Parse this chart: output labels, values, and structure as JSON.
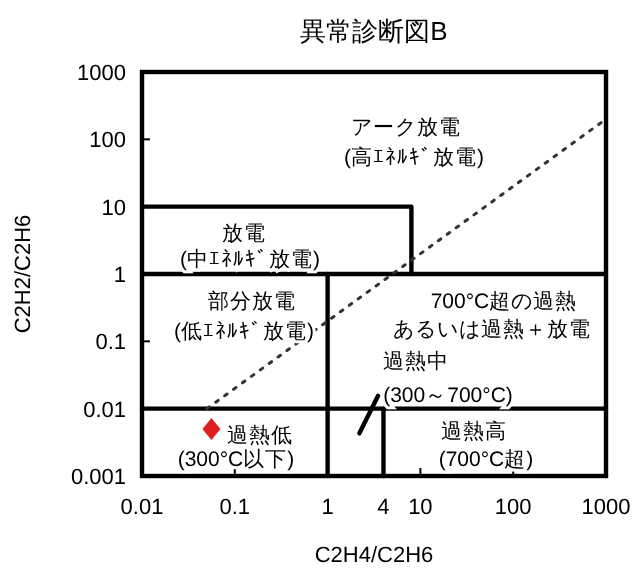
{
  "chart_data": {
    "type": "line",
    "title": "異常診断図B",
    "xlabel": "C2H4/C2H6",
    "ylabel": "C2H2/C2H6",
    "log": "xy",
    "grid": false,
    "xlim": [
      0.01,
      1000
    ],
    "ylim": [
      0.001,
      1000
    ],
    "xticks": [
      0.01,
      0.1,
      1,
      4,
      10,
      100,
      1000
    ],
    "yticks": [
      0.001,
      0.01,
      0.1,
      1,
      10,
      100,
      1000
    ],
    "series": [
      {
        "color": "#000000",
        "x": [
          0.01,
          8,
          8
        ],
        "values": [
          10,
          10,
          1
        ]
      },
      {
        "color": "#000000",
        "x": [
          0.01,
          1000
        ],
        "values": [
          1,
          1
        ]
      },
      {
        "color": "#000000",
        "x": [
          1,
          1
        ],
        "values": [
          1,
          0.001
        ]
      },
      {
        "color": "#000000",
        "x": [
          0.01,
          1000
        ],
        "values": [
          0.01,
          0.01
        ]
      },
      {
        "color": "#000000",
        "x": [
          4,
          4
        ],
        "values": [
          0.01,
          0.001
        ]
      },
      {
        "color": "#333333",
        "line_style": "dotted",
        "x": [
          0.05,
          1000
        ],
        "values": [
          0.01,
          200
        ]
      },
      {
        "type": "scatter",
        "color": "#e02020",
        "marker": "diamond",
        "x": [
          0.056
        ],
        "values": [
          0.005
        ]
      },
      {
        "color": "#000000",
        "x": [
          2.2,
          3.5
        ],
        "values": [
          0.0043,
          0.0155
        ]
      }
    ],
    "annotations": [
      "アーク放電",
      "(高ｴﾈﾙｷﾞ放電)",
      "放電",
      "(中ｴﾈﾙｷﾞ放電)",
      "部分放電",
      "(低ｴﾈﾙｷﾞ放電)",
      "700°C超の過熱",
      "あるいは過熱＋放電",
      "過熱中",
      "(300～700°C)",
      "過熱高",
      "(700°C超)",
      "過熱低",
      "(300°C以下)"
    ]
  }
}
